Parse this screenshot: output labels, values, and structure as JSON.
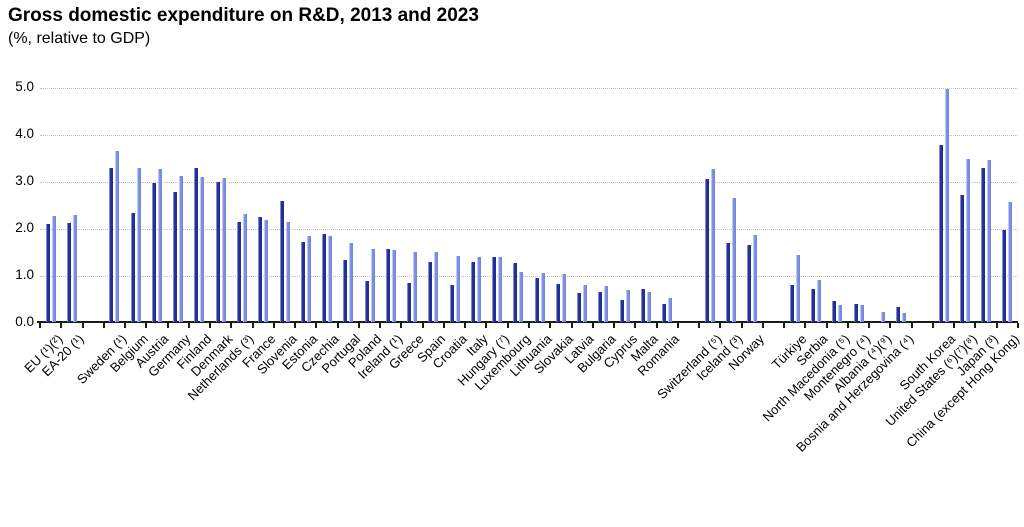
{
  "title": "Gross domestic expenditure on R&D, 2013 and 2023",
  "subtitle": "(%, relative to GDP)",
  "chart_data": {
    "type": "bar",
    "title": "Gross domestic expenditure on R&D, 2013 and 2023",
    "subtitle": "(%, relative to GDP)",
    "ylabel": "% of GDP",
    "xlabel": "",
    "ylim": [
      0,
      5
    ],
    "ytick_labels": [
      "0.0",
      "1.0",
      "2.0",
      "3.0",
      "4.0",
      "5.0"
    ],
    "grid": "horizontal dotted",
    "legend_position": "none",
    "series_names": [
      "2013",
      "2023"
    ],
    "colors": {
      "2013": "#27339a",
      "2023": "#8496e7"
    },
    "categories": [
      {
        "label": "EU (¹)(²)",
        "y2013": 2.08,
        "y2023": 2.25
      },
      {
        "label": "EA-20 (¹)",
        "y2013": 2.1,
        "y2023": 2.28
      },
      {
        "spacer": true
      },
      {
        "label": "Sweden (¹)",
        "y2013": 3.27,
        "y2023": 3.64
      },
      {
        "label": "Belgium",
        "y2013": 2.31,
        "y2023": 3.27
      },
      {
        "label": "Austria",
        "y2013": 2.96,
        "y2023": 3.26
      },
      {
        "label": "Germany",
        "y2013": 2.77,
        "y2023": 3.11
      },
      {
        "label": "Finland",
        "y2013": 3.28,
        "y2023": 3.08
      },
      {
        "label": "Denmark",
        "y2013": 2.97,
        "y2023": 3.06
      },
      {
        "label": "Netherlands (³)",
        "y2013": 2.13,
        "y2023": 2.3
      },
      {
        "label": "France",
        "y2013": 2.23,
        "y2023": 2.18
      },
      {
        "label": "Slovenia",
        "y2013": 2.58,
        "y2023": 2.12
      },
      {
        "label": "Estonia",
        "y2013": 1.71,
        "y2023": 1.83
      },
      {
        "label": "Czechia",
        "y2013": 1.88,
        "y2023": 1.82
      },
      {
        "label": "Portugal",
        "y2013": 1.32,
        "y2023": 1.69
      },
      {
        "label": "Poland",
        "y2013": 0.87,
        "y2023": 1.56
      },
      {
        "label": "Ireland (¹)",
        "y2013": 1.55,
        "y2023": 1.54
      },
      {
        "label": "Greece",
        "y2013": 0.83,
        "y2023": 1.5
      },
      {
        "label": "Spain",
        "y2013": 1.27,
        "y2023": 1.49
      },
      {
        "label": "Croatia",
        "y2013": 0.78,
        "y2023": 1.4
      },
      {
        "label": "Italy",
        "y2013": 1.28,
        "y2023": 1.38
      },
      {
        "label": "Hungary (⁷)",
        "y2013": 1.39,
        "y2023": 1.38
      },
      {
        "label": "Luxembourg",
        "y2013": 1.25,
        "y2023": 1.06
      },
      {
        "label": "Lithuania",
        "y2013": 0.94,
        "y2023": 1.04
      },
      {
        "label": "Slovakia",
        "y2013": 0.8,
        "y2023": 1.03
      },
      {
        "label": "Latvia",
        "y2013": 0.62,
        "y2023": 0.79
      },
      {
        "label": "Bulgaria",
        "y2013": 0.64,
        "y2023": 0.77
      },
      {
        "label": "Cyprus",
        "y2013": 0.47,
        "y2023": 0.68
      },
      {
        "label": "Malta",
        "y2013": 0.71,
        "y2023": 0.64
      },
      {
        "label": "Romania",
        "y2013": 0.39,
        "y2023": 0.52
      },
      {
        "spacer": true
      },
      {
        "label": "Switzerland (⁵)",
        "y2013": 3.05,
        "y2023": 3.25
      },
      {
        "label": "Iceland (³)",
        "y2013": 1.69,
        "y2023": 2.63
      },
      {
        "label": "Norway",
        "y2013": 1.64,
        "y2023": 1.85
      },
      {
        "spacer": true
      },
      {
        "label": "Türkiye",
        "y2013": 0.79,
        "y2023": 1.42
      },
      {
        "label": "Serbia",
        "y2013": 0.7,
        "y2023": 0.89
      },
      {
        "label": "North Macedonia (⁵)",
        "y2013": 0.44,
        "y2023": 0.37
      },
      {
        "label": "Montenegro (⁴)",
        "y2013": 0.38,
        "y2023": 0.36
      },
      {
        "label": "Albania (⁴)(⁹)",
        "y2013": null,
        "y2023": 0.21
      },
      {
        "label": "Bosnia and Herzegovina (⁴)",
        "y2013": 0.32,
        "y2023": 0.19
      },
      {
        "spacer": true
      },
      {
        "label": "South Korea",
        "y2013": 3.77,
        "y2023": 4.95
      },
      {
        "label": "United States (⁶)(⁷)(⁸)",
        "y2013": 2.7,
        "y2023": 3.46
      },
      {
        "label": "Japan (³)",
        "y2013": 3.28,
        "y2023": 3.44
      },
      {
        "label": "China (except Hong Kong)",
        "y2013": 1.96,
        "y2023": 2.56
      }
    ]
  }
}
